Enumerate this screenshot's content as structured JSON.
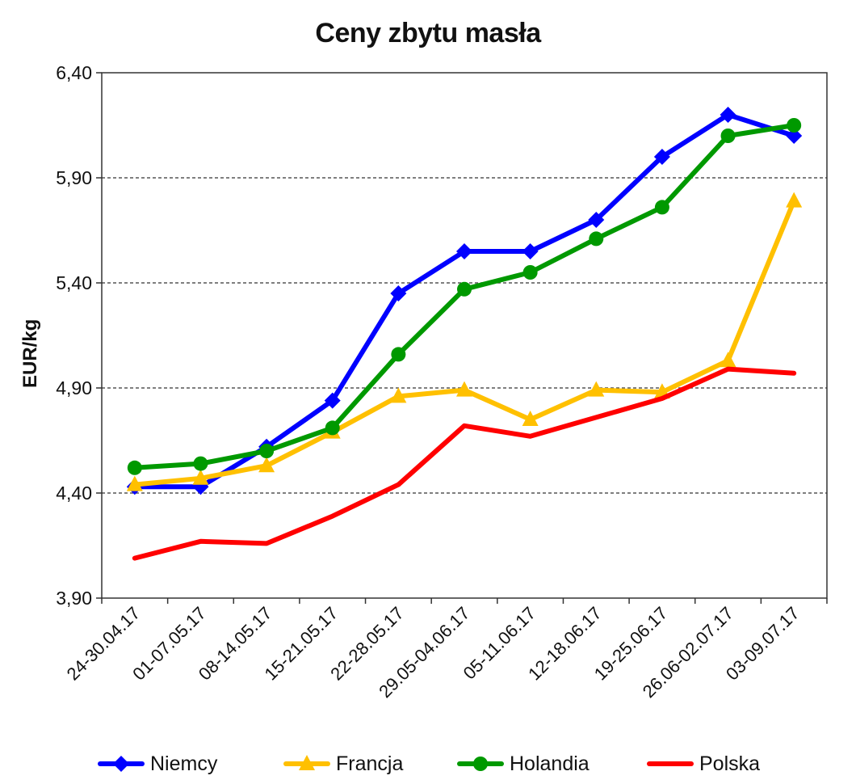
{
  "chart_data": {
    "type": "line",
    "title": "Ceny zbytu masła",
    "ylabel": "EUR/kg",
    "xlabel": "",
    "ylim": [
      3.9,
      6.4
    ],
    "y_ticks": [
      "3,90",
      "4,40",
      "4,90",
      "5,40",
      "5,90",
      "6,40"
    ],
    "y_tick_values": [
      3.9,
      4.4,
      4.9,
      5.4,
      5.9,
      6.4
    ],
    "categories": [
      "24-30.04.17",
      "01-07.05.17",
      "08-14.05.17",
      "15-21.05.17",
      "22-28.05.17",
      "29.05-04.06.17",
      "05-11.06.17",
      "12-18.06.17",
      "19-25.06.17",
      "26.06-02.07.17",
      "03-09.07.17"
    ],
    "grid": "horizontal dashed",
    "legend_position": "bottom",
    "series": [
      {
        "name": "Niemcy",
        "color": "#0000ff",
        "marker": "diamond",
        "values": [
          4.43,
          4.43,
          4.62,
          4.84,
          5.35,
          5.55,
          5.55,
          5.7,
          6.0,
          6.2,
          6.1
        ]
      },
      {
        "name": "Francja",
        "color": "#ffc000",
        "marker": "triangle",
        "values": [
          4.44,
          4.47,
          4.53,
          4.69,
          4.86,
          4.89,
          4.75,
          4.89,
          4.88,
          5.03,
          5.79
        ]
      },
      {
        "name": "Holandia",
        "color": "#009900",
        "marker": "circle",
        "values": [
          4.52,
          4.54,
          4.6,
          4.71,
          5.06,
          5.37,
          5.45,
          5.61,
          5.76,
          6.1,
          6.15
        ]
      },
      {
        "name": "Polska",
        "color": "#ff0000",
        "marker": "none",
        "values": [
          4.09,
          4.17,
          4.16,
          4.29,
          4.44,
          4.72,
          4.67,
          4.76,
          4.85,
          4.99,
          4.97
        ]
      }
    ]
  }
}
